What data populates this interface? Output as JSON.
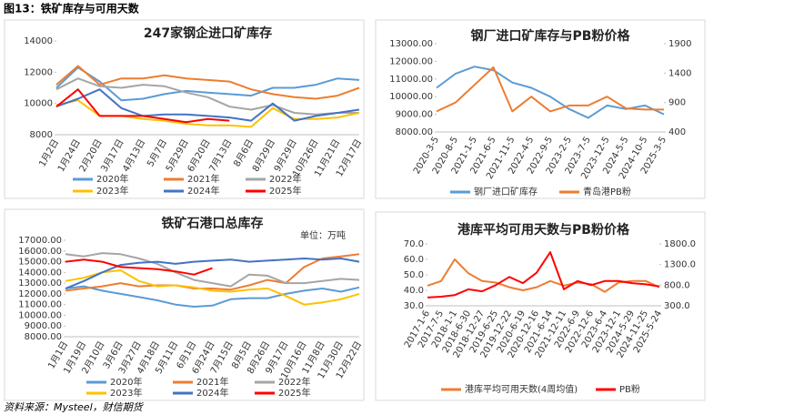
{
  "header": {
    "title": "图13：铁矿库存与可用天数"
  },
  "footer": {
    "source": "资料来源：Mysteel，财信期货"
  },
  "chart_data": [
    {
      "type": "line",
      "title": "247家钢企进口矿库存",
      "categories": [
        "1月2日",
        "1月24日",
        "2月20日",
        "3月17日",
        "4月13日",
        "5月7日",
        "5月29日",
        "6月20日",
        "7月13日",
        "8月6日",
        "8月29日",
        "9月29日",
        "10月26日",
        "11月21日",
        "12月17日"
      ],
      "ylim": [
        8000,
        14000
      ],
      "yticks": [
        8000,
        10000,
        12000,
        14000
      ],
      "series": [
        {
          "name": "2020年",
          "color": "#5b9bd5",
          "values": [
            11000,
            12300,
            11400,
            10200,
            10300,
            10600,
            10800,
            10700,
            10600,
            10500,
            11000,
            11000,
            11200,
            11600,
            11500
          ]
        },
        {
          "name": "2021年",
          "color": "#ed7d31",
          "values": [
            11200,
            12400,
            11200,
            11600,
            11600,
            11800,
            11600,
            11500,
            11400,
            10900,
            10600,
            10400,
            10300,
            10500,
            11000
          ]
        },
        {
          "name": "2022年",
          "color": "#a5a5a5",
          "values": [
            10900,
            11600,
            11100,
            11000,
            11200,
            11100,
            10700,
            10400,
            9800,
            9600,
            9900,
            9400,
            9300,
            9400,
            9400
          ]
        },
        {
          "name": "2023年",
          "color": "#ffc000",
          "values": [
            9900,
            10200,
            9200,
            9200,
            9000,
            8900,
            8700,
            8600,
            8600,
            8500,
            9700,
            9000,
            9000,
            9100,
            9400
          ]
        },
        {
          "name": "2024年",
          "color": "#4472c4",
          "values": [
            9800,
            10300,
            10900,
            9700,
            9200,
            9300,
            9300,
            9200,
            9100,
            8900,
            10000,
            8900,
            9200,
            9400,
            9600
          ]
        },
        {
          "name": "2025年",
          "color": "#ff0000",
          "values": [
            9800,
            10900,
            9200,
            9200,
            9200,
            9000,
            8800,
            9000,
            8900,
            null,
            null,
            null,
            null,
            null,
            null
          ]
        }
      ]
    },
    {
      "type": "line",
      "title": "钢厂进口矿库存与PB粉价格",
      "categories": [
        "2020-3-5",
        "2020-8-5",
        "2021-1-5",
        "2021-6-5",
        "2021-11-5",
        "2022-4-5",
        "2022-9-5",
        "2023-2-5",
        "2023-7-5",
        "2023-12-5",
        "2024-5-5",
        "2024-10-5",
        "2025-3-5"
      ],
      "ylim": [
        8000,
        13000
      ],
      "yticks": [
        {
          "value": 8000,
          "label": "8000.00"
        },
        {
          "value": 9000,
          "label": "9000.00"
        },
        {
          "value": 10000,
          "label": "10000.00"
        },
        {
          "value": 11000,
          "label": "11000.00"
        },
        {
          "value": 12000,
          "label": "12000.00"
        },
        {
          "value": 13000,
          "label": "13000.00"
        }
      ],
      "y2lim": [
        400,
        1900
      ],
      "y2ticks": [
        400,
        900,
        1400,
        1900
      ],
      "series": [
        {
          "name": "钢厂进口矿库存",
          "color": "#5b9bd5",
          "values": [
            10500,
            11300,
            11700,
            11500,
            10800,
            10500,
            10000,
            9300,
            8800,
            9500,
            9300,
            9500,
            9000
          ]
        },
        {
          "name": "青岛港PB粉",
          "color": "#ed7d31",
          "axis": "y2",
          "values": [
            750,
            900,
            1200,
            1500,
            750,
            1000,
            750,
            850,
            850,
            1000,
            800,
            780,
            780
          ]
        }
      ]
    },
    {
      "type": "line",
      "title": "铁矿石港口总库存",
      "unit": "单位：万吨",
      "categories": [
        "1月1日",
        "1月19日",
        "2月10日",
        "3月6日",
        "3月27日",
        "4月18日",
        "5月11日",
        "6月1日",
        "6月24日",
        "7月15日",
        "8月5日",
        "8月26日",
        "9月17日",
        "10月16日",
        "11月8日",
        "11月30日",
        "12月22日"
      ],
      "ylim": [
        8000,
        17000
      ],
      "yticks": [
        {
          "value": 8000,
          "label": "8000.00"
        },
        {
          "value": 9000,
          "label": "9000.00"
        },
        {
          "value": 10000,
          "label": "10000.00"
        },
        {
          "value": 11000,
          "label": "11000.00"
        },
        {
          "value": 12000,
          "label": "12000.00"
        },
        {
          "value": 13000,
          "label": "13000.00"
        },
        {
          "value": 14000,
          "label": "14000.00"
        },
        {
          "value": 15000,
          "label": "15000.00"
        },
        {
          "value": 16000,
          "label": "16000.00"
        },
        {
          "value": 17000,
          "label": "17000.00"
        }
      ],
      "series": [
        {
          "name": "2020年",
          "color": "#5b9bd5",
          "values": [
            12500,
            12700,
            12300,
            12000,
            11700,
            11400,
            11000,
            10800,
            10900,
            11500,
            11600,
            11600,
            12000,
            12300,
            12500,
            12200,
            12600
          ]
        },
        {
          "name": "2021年",
          "color": "#ed7d31",
          "values": [
            12300,
            12500,
            12700,
            13000,
            12700,
            12800,
            12800,
            12500,
            12500,
            12400,
            12800,
            13300,
            13000,
            14500,
            15300,
            15500,
            15700
          ]
        },
        {
          "name": "2022年",
          "color": "#a5a5a5",
          "values": [
            15700,
            15500,
            15800,
            15700,
            15300,
            14800,
            14000,
            13300,
            13000,
            12700,
            13800,
            13700,
            13000,
            13000,
            13200,
            13400,
            13300
          ]
        },
        {
          "name": "2023年",
          "color": "#ffc000",
          "values": [
            13200,
            13500,
            14000,
            14200,
            13200,
            12700,
            12800,
            12600,
            12300,
            12200,
            12400,
            12500,
            11800,
            11000,
            11200,
            11500,
            12000
          ]
        },
        {
          "name": "2024年",
          "color": "#4472c4",
          "values": [
            12500,
            13200,
            14000,
            14700,
            14900,
            15000,
            14800,
            15000,
            15100,
            15200,
            15000,
            15100,
            15200,
            15300,
            15200,
            15300,
            15000
          ]
        },
        {
          "name": "2025年",
          "color": "#ff0000",
          "values": [
            15000,
            15200,
            15000,
            14500,
            14400,
            14300,
            14100,
            13800,
            14400,
            null,
            null,
            null,
            null,
            null,
            null,
            null,
            null
          ]
        }
      ]
    },
    {
      "type": "line",
      "title": "港库平均可用天数与PB粉价格",
      "categories": [
        "2017-1-6",
        "2017-7-5",
        "2018-1-1",
        "2018-6-30",
        "2018-12-27",
        "2019-6-25",
        "2019-12-22",
        "2020-6-19",
        "2020-12-16",
        "2021-6-14",
        "2021-12-11",
        "2022-6-9",
        "2022-12-6",
        "2023-6-4",
        "2023-12-1",
        "2024-5-29",
        "2024-11-25",
        "2025-5-24"
      ],
      "ylim": [
        30,
        70
      ],
      "yticks": [
        {
          "value": 30,
          "label": "30.0"
        },
        {
          "value": 40,
          "label": "40.0"
        },
        {
          "value": 50,
          "label": "50.0"
        },
        {
          "value": 60,
          "label": "60.0"
        },
        {
          "value": 70,
          "label": "70.0"
        }
      ],
      "y2lim": [
        300,
        1800
      ],
      "y2ticks": [
        {
          "value": 300,
          "label": "300.0"
        },
        {
          "value": 800,
          "label": "800.0"
        },
        {
          "value": 1300,
          "label": "1300.0"
        },
        {
          "value": 1800,
          "label": "1800.0"
        }
      ],
      "series": [
        {
          "name": "港库平均可用天数(4周均值)",
          "color": "#ed7d31",
          "values": [
            43,
            46,
            60,
            51,
            46,
            45,
            42,
            40,
            42,
            46,
            43,
            45,
            44,
            39,
            45,
            46,
            46,
            42
          ]
        },
        {
          "name": "PB粉",
          "color": "#ff0000",
          "axis": "y2",
          "values": [
            500,
            520,
            560,
            700,
            650,
            800,
            1000,
            850,
            1100,
            1600,
            700,
            900,
            800,
            900,
            900,
            850,
            820,
            770
          ]
        }
      ]
    }
  ]
}
